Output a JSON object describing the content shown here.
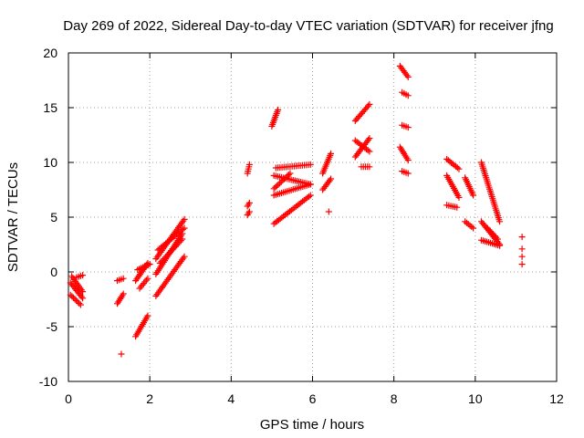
{
  "chart_data": {
    "type": "scatter",
    "title": "Day 269 of 2022, Sidereal Day-to-day VTEC variation (SDTVAR) for receiver jfng",
    "xlabel": "GPS time / hours",
    "ylabel": "SDTVAR / TECUs",
    "xlim": [
      0,
      12
    ],
    "ylim": [
      -10,
      20
    ],
    "xticks": [
      0,
      2,
      4,
      6,
      8,
      10,
      12
    ],
    "yticks": [
      -10,
      -5,
      0,
      5,
      10,
      15,
      20
    ],
    "xtick_labels": [
      "0",
      "2",
      "4",
      "6",
      "8",
      "10",
      "12"
    ],
    "ytick_labels": [
      "-10",
      "-5",
      "0",
      "5",
      "10",
      "15",
      "20"
    ],
    "grid": true,
    "marker": "+",
    "color": "#ff0000",
    "segments": [
      {
        "x": [
          0.05,
          0.35
        ],
        "y": [
          -1.0,
          -2.4
        ]
      },
      {
        "x": [
          0.05,
          0.3
        ],
        "y": [
          -2.1,
          -3.0
        ]
      },
      {
        "x": [
          0.08,
          0.35
        ],
        "y": [
          -0.4,
          -1.8
        ]
      },
      {
        "x": [
          0.2,
          0.35
        ],
        "y": [
          -0.5,
          -0.3
        ]
      },
      {
        "x": [
          1.2,
          1.35
        ],
        "y": [
          -2.9,
          -2.0
        ]
      },
      {
        "x": [
          1.2,
          1.35
        ],
        "y": [
          -0.8,
          -0.6
        ]
      },
      {
        "x": [
          1.3,
          1.3
        ],
        "y": [
          -7.5,
          -7.5
        ]
      },
      {
        "x": [
          1.65,
          1.95
        ],
        "y": [
          -5.9,
          -4.0
        ]
      },
      {
        "x": [
          1.65,
          1.95
        ],
        "y": [
          -0.8,
          0.8
        ]
      },
      {
        "x": [
          1.7,
          2.0
        ],
        "y": [
          0.2,
          0.7
        ]
      },
      {
        "x": [
          1.75,
          1.95
        ],
        "y": [
          -1.5,
          -0.6
        ]
      },
      {
        "x": [
          2.15,
          2.85
        ],
        "y": [
          -2.2,
          1.4
        ]
      },
      {
        "x": [
          2.15,
          2.8
        ],
        "y": [
          -0.2,
          3.5
        ]
      },
      {
        "x": [
          2.15,
          2.85
        ],
        "y": [
          1.2,
          4.8
        ]
      },
      {
        "x": [
          2.2,
          2.85
        ],
        "y": [
          2.0,
          4.0
        ]
      },
      {
        "x": [
          2.25,
          2.8
        ],
        "y": [
          0.8,
          3.0
        ]
      },
      {
        "x": [
          4.4,
          4.45
        ],
        "y": [
          9.0,
          9.8
        ]
      },
      {
        "x": [
          4.4,
          4.45
        ],
        "y": [
          6.0,
          6.3
        ]
      },
      {
        "x": [
          4.4,
          4.45
        ],
        "y": [
          5.2,
          5.5
        ]
      },
      {
        "x": [
          5.0,
          5.15
        ],
        "y": [
          13.3,
          14.8
        ]
      },
      {
        "x": [
          5.05,
          5.95
        ],
        "y": [
          4.4,
          7.0
        ]
      },
      {
        "x": [
          5.05,
          5.95
        ],
        "y": [
          7.0,
          8.0
        ]
      },
      {
        "x": [
          5.05,
          5.95
        ],
        "y": [
          8.8,
          8.0
        ]
      },
      {
        "x": [
          5.1,
          5.95
        ],
        "y": [
          9.5,
          9.8
        ]
      },
      {
        "x": [
          5.05,
          5.45
        ],
        "y": [
          7.6,
          9.0
        ]
      },
      {
        "x": [
          6.25,
          6.45
        ],
        "y": [
          9.0,
          10.8
        ]
      },
      {
        "x": [
          6.25,
          6.45
        ],
        "y": [
          7.5,
          8.5
        ]
      },
      {
        "x": [
          6.4,
          6.4
        ],
        "y": [
          5.5,
          5.5
        ]
      },
      {
        "x": [
          7.05,
          7.4
        ],
        "y": [
          13.8,
          15.3
        ]
      },
      {
        "x": [
          7.05,
          7.4
        ],
        "y": [
          10.5,
          12.2
        ]
      },
      {
        "x": [
          7.05,
          7.4
        ],
        "y": [
          12.0,
          11.0
        ]
      },
      {
        "x": [
          7.2,
          7.4
        ],
        "y": [
          9.6,
          9.6
        ]
      },
      {
        "x": [
          8.15,
          8.35
        ],
        "y": [
          18.8,
          17.8
        ]
      },
      {
        "x": [
          8.2,
          8.35
        ],
        "y": [
          16.4,
          16.1
        ]
      },
      {
        "x": [
          8.2,
          8.35
        ],
        "y": [
          13.4,
          13.2
        ]
      },
      {
        "x": [
          8.15,
          8.35
        ],
        "y": [
          11.4,
          10.2
        ]
      },
      {
        "x": [
          8.2,
          8.35
        ],
        "y": [
          9.2,
          9.0
        ]
      },
      {
        "x": [
          9.3,
          9.6
        ],
        "y": [
          10.3,
          9.4
        ]
      },
      {
        "x": [
          9.3,
          9.6
        ],
        "y": [
          8.8,
          6.8
        ]
      },
      {
        "x": [
          9.3,
          9.55
        ],
        "y": [
          6.1,
          5.9
        ]
      },
      {
        "x": [
          9.75,
          9.95
        ],
        "y": [
          8.6,
          7.0
        ]
      },
      {
        "x": [
          9.75,
          9.95
        ],
        "y": [
          4.6,
          4.0
        ]
      },
      {
        "x": [
          10.15,
          10.6
        ],
        "y": [
          10.0,
          4.6
        ]
      },
      {
        "x": [
          10.15,
          10.6
        ],
        "y": [
          4.6,
          2.5
        ]
      },
      {
        "x": [
          10.15,
          10.6
        ],
        "y": [
          2.9,
          2.4
        ]
      },
      {
        "x": [
          10.3,
          10.55
        ],
        "y": [
          4.0,
          3.0
        ]
      },
      {
        "x": [
          11.15,
          11.15
        ],
        "y": [
          3.2,
          3.2
        ]
      },
      {
        "x": [
          11.15,
          11.15
        ],
        "y": [
          2.1,
          2.1
        ]
      },
      {
        "x": [
          11.15,
          11.15
        ],
        "y": [
          1.4,
          1.4
        ]
      },
      {
        "x": [
          11.15,
          11.15
        ],
        "y": [
          0.7,
          0.7
        ]
      }
    ]
  }
}
